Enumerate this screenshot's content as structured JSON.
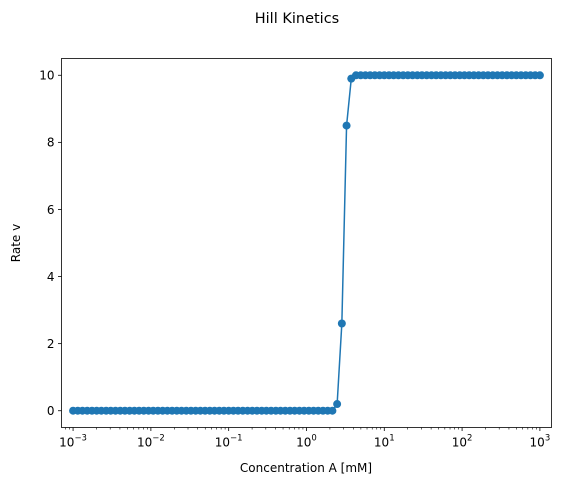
{
  "chart_data": {
    "type": "line",
    "title": "Hill Kinetics",
    "xlabel": "Concentration A [mM]",
    "ylabel": "Rate v",
    "x_scale": "log",
    "xlim": [
      0.00071,
      1410
    ],
    "ylim": [
      -0.5,
      10.5
    ],
    "x_ticks": [
      {
        "value": 0.001,
        "base": "10",
        "exp": "−3"
      },
      {
        "value": 0.01,
        "base": "10",
        "exp": "−2"
      },
      {
        "value": 0.1,
        "base": "10",
        "exp": "−1"
      },
      {
        "value": 1,
        "base": "10",
        "exp": "0"
      },
      {
        "value": 10,
        "base": "10",
        "exp": "1"
      },
      {
        "value": 100,
        "base": "10",
        "exp": "2"
      },
      {
        "value": 1000,
        "base": "10",
        "exp": "3"
      }
    ],
    "y_ticks": [
      "0",
      "2",
      "4",
      "6",
      "8",
      "10"
    ],
    "series": [
      {
        "color": "#1f77b4",
        "marker": "circle",
        "x_range": [
          0.001,
          1000
        ],
        "n_points": 100,
        "x": [
          0.001,
          0.00115,
          0.00132,
          0.00152,
          0.00175,
          0.00201,
          0.00231,
          0.00266,
          0.00305,
          0.00351,
          0.00404,
          0.00464,
          0.00534,
          0.00614,
          0.00705,
          0.00811,
          0.00933,
          0.01072,
          0.01233,
          0.01417,
          0.0163,
          0.01874,
          0.02154,
          0.02477,
          0.02848,
          0.03275,
          0.03765,
          0.04329,
          0.04977,
          0.05722,
          0.06579,
          0.07565,
          0.08697,
          0.1,
          0.115,
          0.132,
          0.152,
          0.175,
          0.201,
          0.231,
          0.266,
          0.305,
          0.351,
          0.404,
          0.464,
          0.534,
          0.614,
          0.705,
          0.811,
          0.933,
          1.072,
          1.233,
          1.417,
          1.63,
          1.874,
          2.154,
          2.477,
          2.848,
          3.275,
          3.765,
          4.329,
          4.977,
          5.722,
          6.579,
          7.565,
          8.697,
          10,
          11.5,
          13.2,
          15.2,
          17.5,
          20.1,
          23.1,
          26.6,
          30.5,
          35.1,
          40.4,
          46.4,
          53.4,
          61.4,
          70.5,
          81.1,
          93.3,
          107.2,
          123.3,
          141.7,
          163.0,
          187.4,
          215.4,
          247.7,
          284.8,
          327.5,
          376.5,
          432.9,
          497.7,
          572.2,
          657.9,
          756.5,
          869.7,
          1000
        ],
        "y": [
          0,
          0,
          0,
          0,
          0,
          0,
          0,
          0,
          0,
          0,
          0,
          0,
          0,
          0,
          0,
          0,
          0,
          0,
          0,
          0,
          0,
          0,
          0,
          0,
          0,
          0,
          0,
          0,
          0,
          0,
          0,
          0,
          0,
          0,
          0,
          0,
          0,
          0,
          0,
          0,
          0,
          0,
          0,
          0,
          0,
          0,
          0,
          0,
          0,
          0,
          0,
          0,
          0,
          0,
          0,
          0,
          0.2,
          2.6,
          8.5,
          9.9,
          10,
          10,
          10,
          10,
          10,
          10,
          10,
          10,
          10,
          10,
          10,
          10,
          10,
          10,
          10,
          10,
          10,
          10,
          10,
          10,
          10,
          10,
          10,
          10,
          10,
          10,
          10,
          10,
          10,
          10,
          10,
          10,
          10,
          10,
          10,
          10,
          10,
          10,
          10,
          10
        ]
      }
    ],
    "grid": false,
    "legend": "none"
  }
}
